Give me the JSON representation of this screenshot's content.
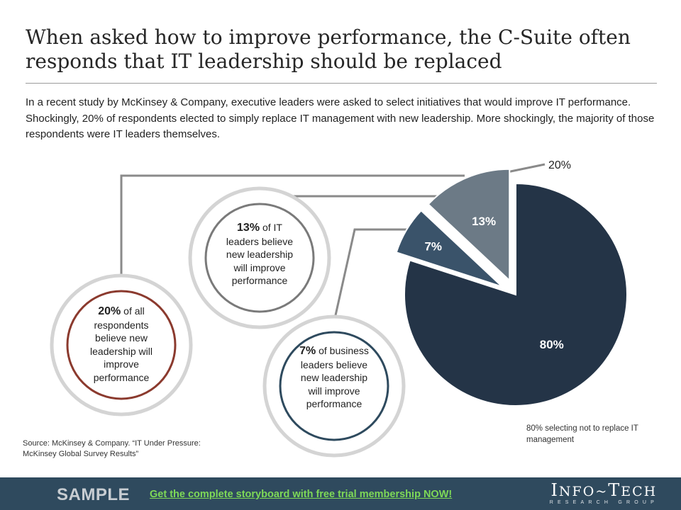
{
  "title": "When asked how to improve performance, the C-Suite often responds that IT leadership should be replaced",
  "intro": "In a recent study by McKinsey & Company, executive leaders were asked to select initiatives that would improve IT performance. Shockingly, 20% of respondents elected to simply replace IT management with new leadership. More shockingly, the majority of those respondents were IT leaders themselves.",
  "chart_data": {
    "type": "pie",
    "categories": [
      "80%",
      "7%",
      "13%"
    ],
    "values": [
      80,
      7,
      13
    ],
    "slice_labels": [
      "80%",
      "7%",
      "13%"
    ],
    "colors": [
      "#243447",
      "#3a536a",
      "#6c7a86"
    ],
    "exploded_group_label": "20%",
    "annotation": "80% selecting not to replace IT management"
  },
  "bubbles": [
    {
      "pct": "20%",
      "text": " of all respondents believe new leadership will improve performance",
      "ring_color": "#8b3a2e"
    },
    {
      "pct": "13%",
      "text": " of IT leaders believe new leadership will improve performance",
      "ring_color": "#7a7a7a"
    },
    {
      "pct": "7%",
      "text": " of business leaders believe new leadership will improve performance",
      "ring_color": "#2e4a5e"
    }
  ],
  "source": "Source: McKinsey & Company. “IT Under Pressure: McKinsey Global Survey Results”",
  "footer": {
    "sample": "SAMPLE",
    "cta": "Get the complete storyboard with free trial membership NOW!",
    "logo_first_big": "I",
    "logo_first": "NFO",
    "logo_sep": "~",
    "logo_second_big": "T",
    "logo_second": "ECH",
    "logo_sub": "RESEARCH GROUP",
    "background": "#2f4a5e",
    "cta_color": "#7ed957"
  }
}
